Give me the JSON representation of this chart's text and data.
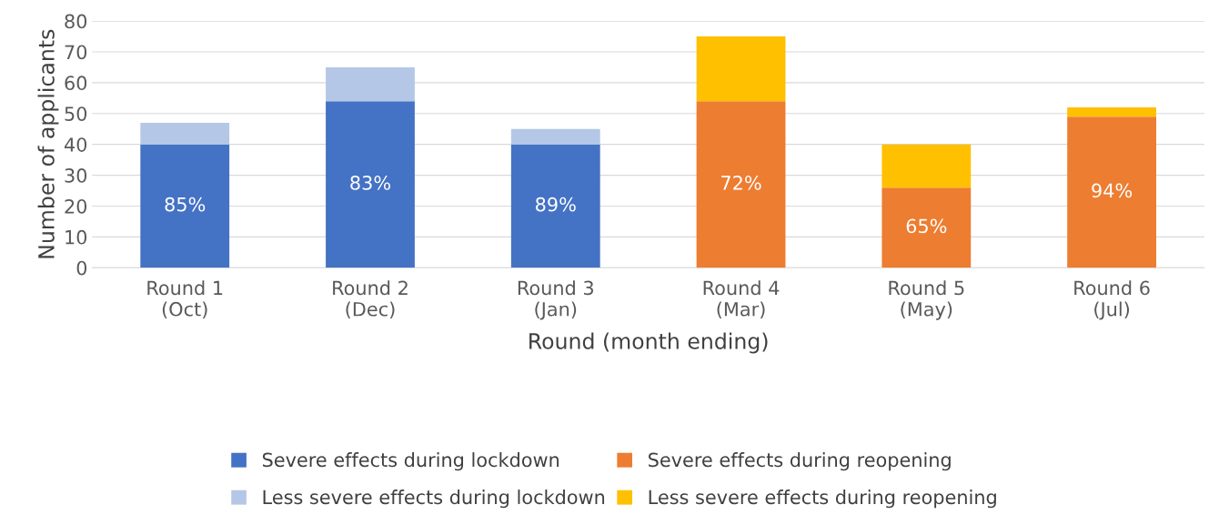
{
  "chart_data": {
    "type": "bar",
    "stacked": true,
    "categories": [
      "Round 1\n(Oct)",
      "Round 2\n(Dec)",
      "Round 3\n(Jan)",
      "Round 4\n(Mar)",
      "Round 5\n(May)",
      "Round 6\n(Jul)"
    ],
    "xlabel": "Round (month ending)",
    "ylabel": "Number of applicants",
    "ylim": [
      0,
      80
    ],
    "yticks": [
      0,
      10,
      20,
      30,
      40,
      50,
      60,
      70,
      80
    ],
    "grid": "y",
    "legend": "bottom",
    "annotations": [
      "85%",
      "83%",
      "89%",
      "72%",
      "65%",
      "94%"
    ],
    "series": [
      {
        "name": "Severe effects during lockdown",
        "color": "#4472c4",
        "values": [
          40,
          54,
          40,
          null,
          null,
          null
        ]
      },
      {
        "name": "Severe effects during reopening",
        "color": "#ed7d31",
        "values": [
          null,
          null,
          null,
          54,
          26,
          49
        ]
      },
      {
        "name": "Less severe effects during lockdown",
        "color": "#b4c7e7",
        "values": [
          7,
          11,
          5,
          null,
          null,
          null
        ]
      },
      {
        "name": "Less severe effects during reopening",
        "color": "#ffc000",
        "values": [
          null,
          null,
          null,
          21,
          14,
          3
        ]
      }
    ]
  }
}
